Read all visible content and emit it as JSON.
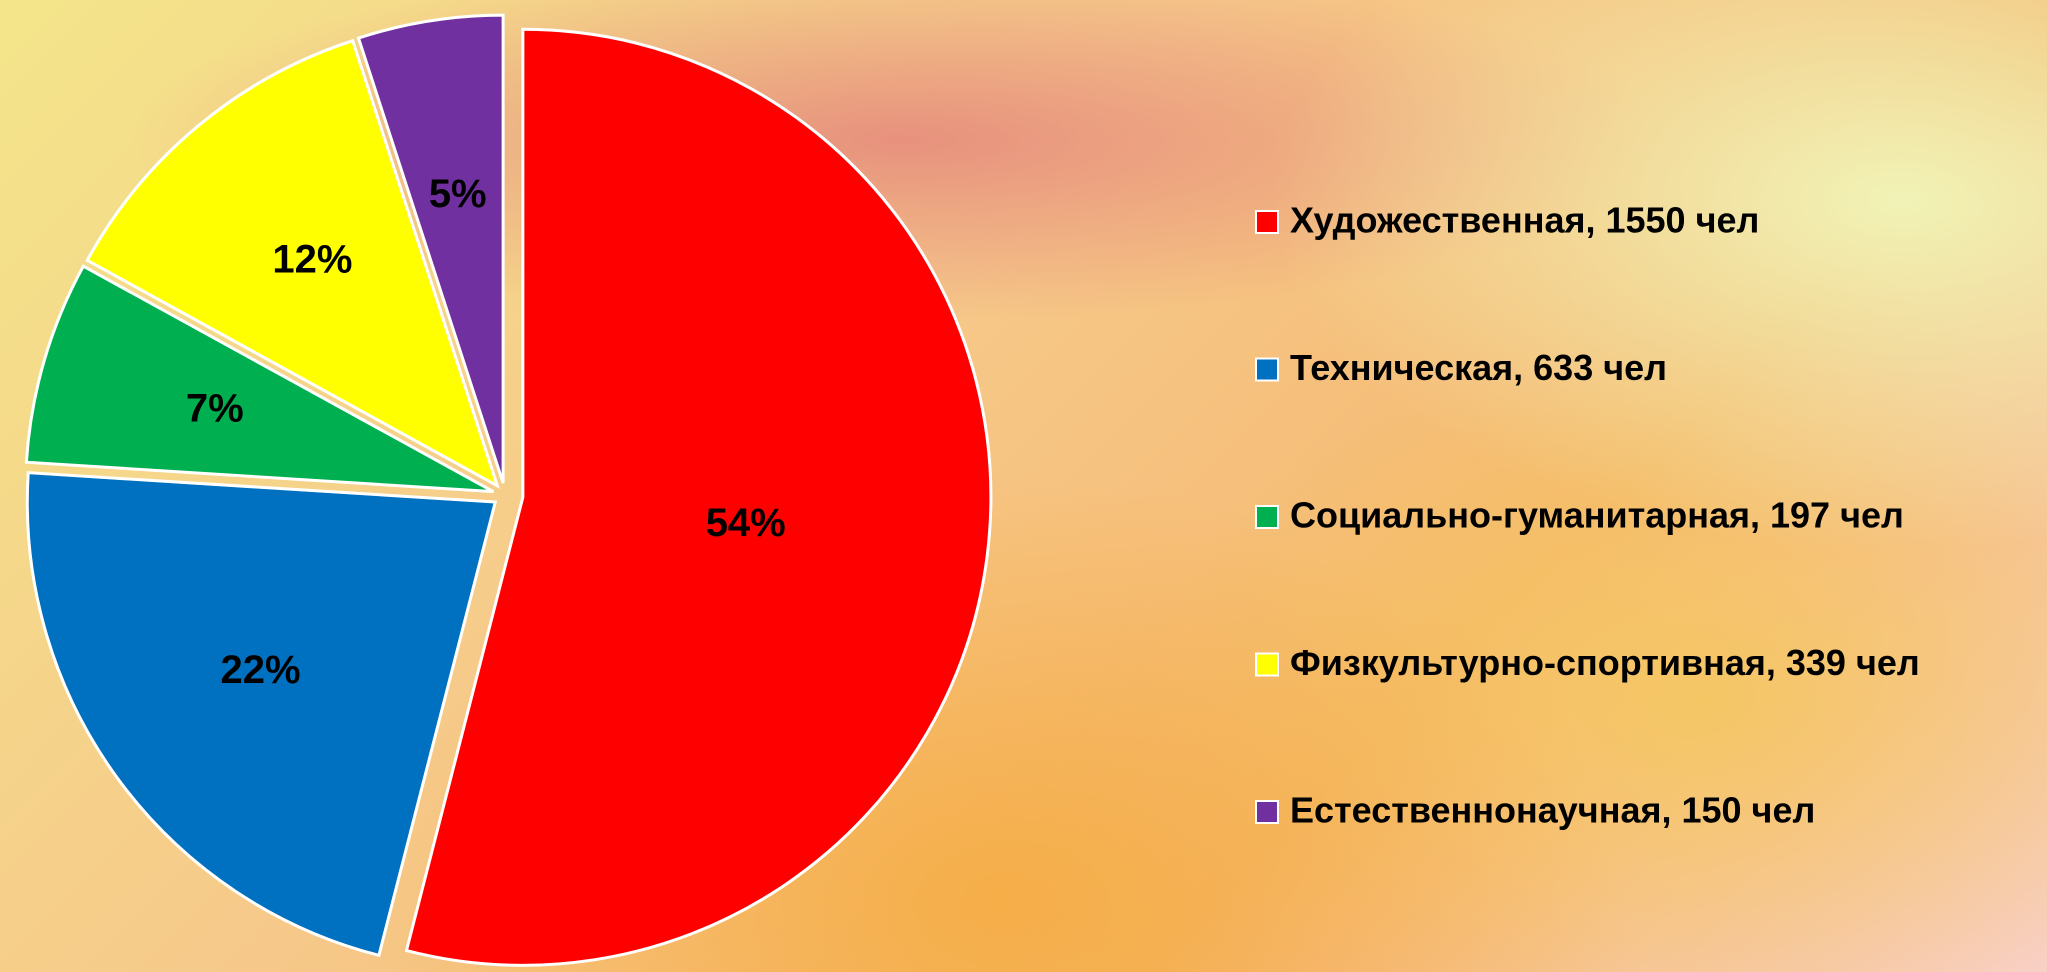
{
  "chart_data": {
    "type": "pie",
    "categories": [
      "Художественная, 1550 чел",
      "Техническая, 633 чел",
      "Социально-гуманитарная, 197 чел",
      "Физкультурно-спортивная, 339 чел",
      "Естественнонаучная, 150 чел"
    ],
    "values": [
      54,
      22,
      7,
      12,
      5
    ],
    "value_labels": [
      "54%",
      "22%",
      "7%",
      "12%",
      "5%"
    ],
    "colors": [
      "#ff0000",
      "#0070c0",
      "#00b050",
      "#ffff00",
      "#7030a0"
    ],
    "legend": "right"
  }
}
